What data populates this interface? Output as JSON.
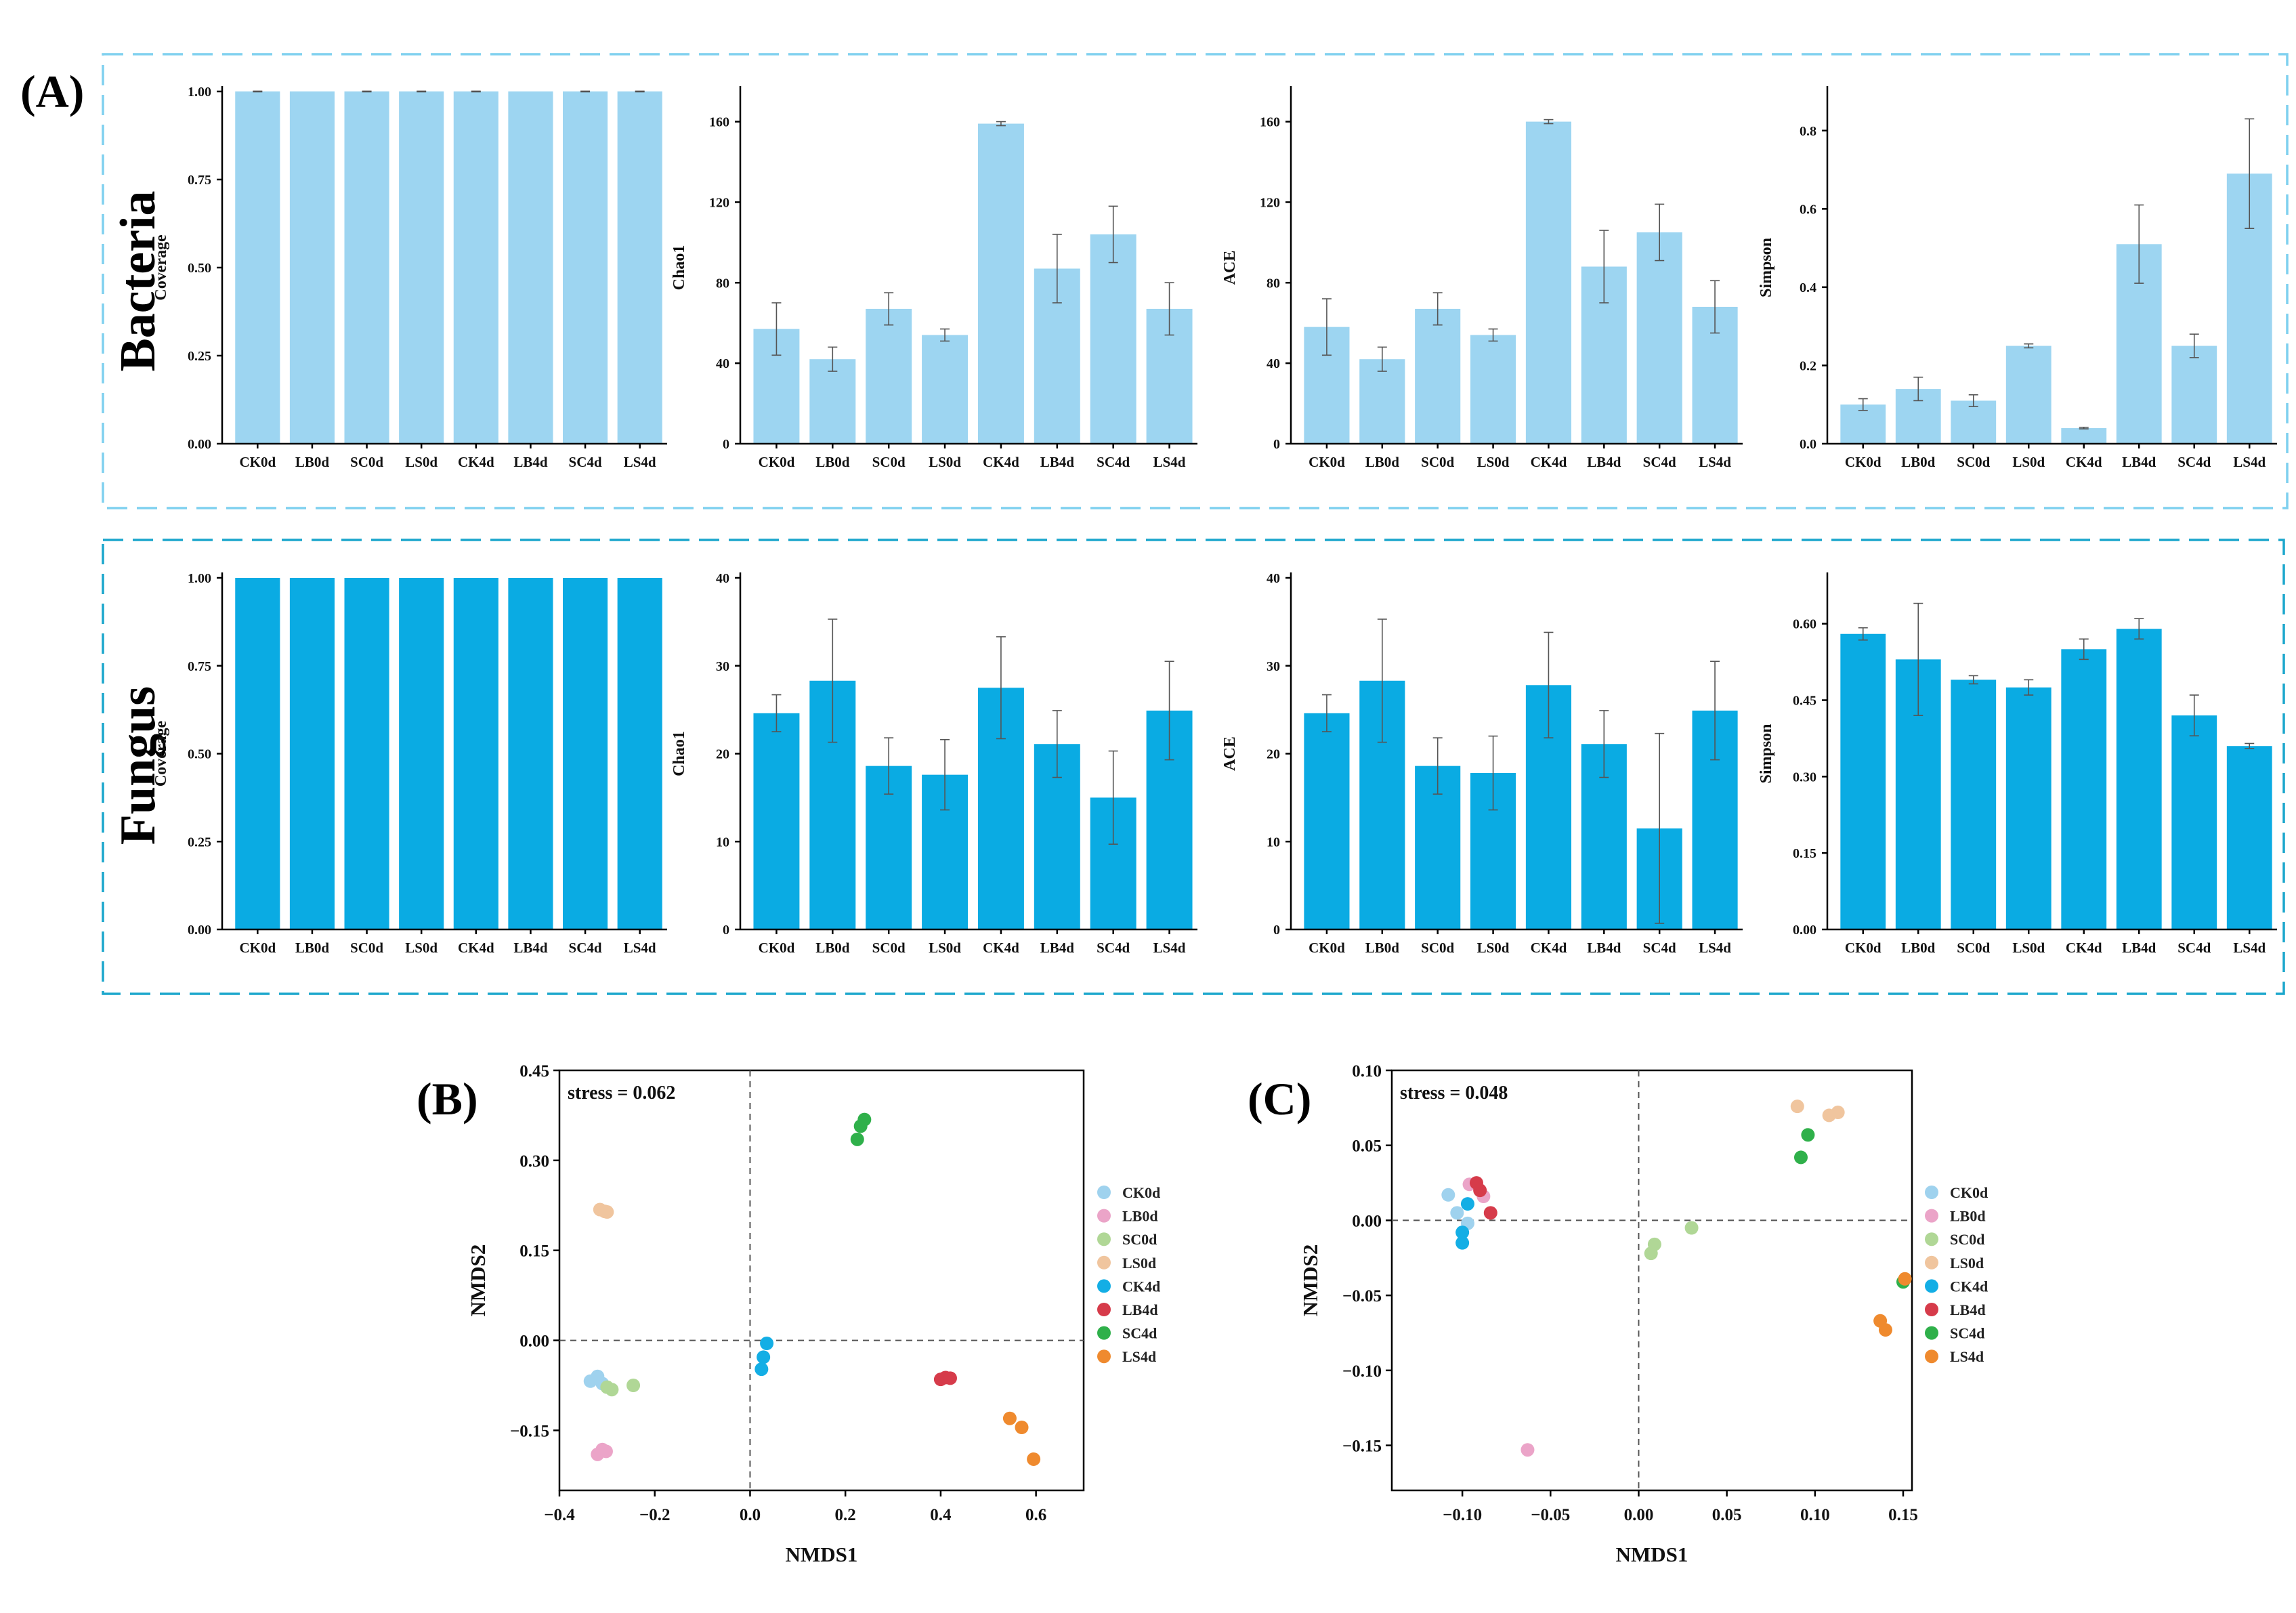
{
  "figure": {
    "label_A": "(A)",
    "label_B": "(B)",
    "label_C": "(C)",
    "row_bacteria": "Bacteria",
    "row_fungus": "Fungus"
  },
  "colors": {
    "bacteria_bar": "#9dd5f1",
    "fungus_bar": "#0aabe3",
    "bacteria_box": "#7fd0ef",
    "fungus_box": "#1aa6cc",
    "groups": {
      "CK0d": "#9fd2ee",
      "LB0d": "#eba4c8",
      "SC0d": "#b0d796",
      "LS0d": "#f0c59e",
      "CK4d": "#13aee5",
      "LB4d": "#d63b4a",
      "SC4d": "#2fb04a",
      "LS4d": "#ef8a2e"
    }
  },
  "chart_data": [
    {
      "id": "bac_coverage",
      "type": "bar",
      "row": "bacteria",
      "ylabel": "Coverage",
      "categories": [
        "CK0d",
        "LB0d",
        "SC0d",
        "LS0d",
        "CK4d",
        "LB4d",
        "SC4d",
        "LS4d"
      ],
      "values": [
        1.0,
        1.0,
        1.0,
        1.0,
        1.0,
        1.0,
        1.0,
        1.0
      ],
      "errors": [
        0.001,
        0,
        0.001,
        0.001,
        0.001,
        0,
        0.001,
        0.001
      ],
      "ylim": [
        0,
        1.0
      ],
      "yticks": [
        "0.00",
        "0.25",
        "0.50",
        "0.75",
        "1.00"
      ]
    },
    {
      "id": "bac_chao1",
      "type": "bar",
      "row": "bacteria",
      "ylabel": "Chao1",
      "categories": [
        "CK0d",
        "LB0d",
        "SC0d",
        "LS0d",
        "CK4d",
        "LB4d",
        "SC4d",
        "LS4d"
      ],
      "values": [
        57,
        42,
        67,
        54,
        159,
        87,
        104,
        67
      ],
      "errors": [
        13,
        6,
        8,
        3,
        1,
        17,
        14,
        13
      ],
      "ylim": [
        0,
        175
      ],
      "yticks": [
        "0",
        "40",
        "80",
        "120",
        "160"
      ]
    },
    {
      "id": "bac_ace",
      "type": "bar",
      "row": "bacteria",
      "ylabel": "ACE",
      "categories": [
        "CK0d",
        "LB0d",
        "SC0d",
        "LS0d",
        "CK4d",
        "LB4d",
        "SC4d",
        "LS4d"
      ],
      "values": [
        58,
        42,
        67,
        54,
        160,
        88,
        105,
        68
      ],
      "errors": [
        14,
        6,
        8,
        3,
        1,
        18,
        14,
        13
      ],
      "ylim": [
        0,
        175
      ],
      "yticks": [
        "0",
        "40",
        "80",
        "120",
        "160"
      ]
    },
    {
      "id": "bac_simpson",
      "type": "bar",
      "row": "bacteria",
      "ylabel": "Simpson",
      "categories": [
        "CK0d",
        "LB0d",
        "SC0d",
        "LS0d",
        "CK4d",
        "LB4d",
        "SC4d",
        "LS4d"
      ],
      "values": [
        0.1,
        0.14,
        0.11,
        0.25,
        0.04,
        0.51,
        0.25,
        0.69
      ],
      "errors": [
        0.015,
        0.03,
        0.015,
        0.005,
        0.002,
        0.1,
        0.03,
        0.14
      ],
      "ylim": [
        0,
        0.9
      ],
      "yticks": [
        "0.0",
        "0.2",
        "0.4",
        "0.6",
        "0.8"
      ]
    },
    {
      "id": "fun_coverage",
      "type": "bar",
      "row": "fungus",
      "ylabel": "Coverage",
      "categories": [
        "CK0d",
        "LB0d",
        "SC0d",
        "LS0d",
        "CK4d",
        "LB4d",
        "SC4d",
        "LS4d"
      ],
      "values": [
        1.0,
        1.0,
        1.0,
        1.0,
        1.0,
        1.0,
        1.0,
        1.0
      ],
      "errors": [
        0,
        0,
        0,
        0,
        0,
        0,
        0,
        0
      ],
      "ylim": [
        0,
        1.0
      ],
      "yticks": [
        "0.00",
        "0.25",
        "0.50",
        "0.75",
        "1.00"
      ]
    },
    {
      "id": "fun_chao1",
      "type": "bar",
      "row": "fungus",
      "ylabel": "Chao1",
      "categories": [
        "CK0d",
        "LB0d",
        "SC0d",
        "LS0d",
        "CK4d",
        "LB4d",
        "SC4d",
        "LS4d"
      ],
      "values": [
        24.6,
        28.3,
        18.6,
        17.6,
        27.5,
        21.1,
        15.0,
        24.9
      ],
      "errors": [
        2.1,
        7.0,
        3.2,
        4.0,
        5.8,
        3.8,
        5.3,
        5.6
      ],
      "ylim": [
        0,
        40
      ],
      "yticks": [
        "0",
        "10",
        "20",
        "30",
        "40"
      ]
    },
    {
      "id": "fun_ace",
      "type": "bar",
      "row": "fungus",
      "ylabel": "ACE",
      "categories": [
        "CK0d",
        "LB0d",
        "SC0d",
        "LS0d",
        "CK4d",
        "LB4d",
        "SC4d",
        "LS4d"
      ],
      "values": [
        24.6,
        28.3,
        18.6,
        17.8,
        27.8,
        21.1,
        11.5,
        24.9
      ],
      "errors": [
        2.1,
        7.0,
        3.2,
        4.2,
        6.0,
        3.8,
        10.8,
        5.6
      ],
      "ylim": [
        0,
        40
      ],
      "yticks": [
        "0",
        "10",
        "20",
        "30",
        "40"
      ]
    },
    {
      "id": "fun_simpson",
      "type": "bar",
      "row": "fungus",
      "ylabel": "Simpson",
      "categories": [
        "CK0d",
        "LB0d",
        "SC0d",
        "LS0d",
        "CK4d",
        "LB4d",
        "SC4d",
        "LS4d"
      ],
      "values": [
        0.58,
        0.53,
        0.49,
        0.475,
        0.55,
        0.59,
        0.42,
        0.36
      ],
      "errors": [
        0.012,
        0.11,
        0.008,
        0.015,
        0.02,
        0.02,
        0.04,
        0.005
      ],
      "ylim": [
        0,
        0.69
      ],
      "yticks": [
        "0.00",
        "0.15",
        "0.30",
        "0.45",
        "0.60"
      ]
    },
    {
      "id": "nmds_b",
      "type": "scatter",
      "panel": "B",
      "xlabel": "NMDS1",
      "ylabel": "NMDS2",
      "stress": "stress = 0.062",
      "xlim": [
        -0.4,
        0.7
      ],
      "ylim": [
        -0.25,
        0.45
      ],
      "xticks": [
        -0.4,
        -0.2,
        0.0,
        0.2,
        0.4,
        0.6
      ],
      "xticklabels": [
        "−0.4",
        "−0.2",
        "0.0",
        "0.2",
        "0.4",
        "0.6"
      ],
      "yticks": [
        -0.15,
        0.0,
        0.15,
        0.3,
        0.45
      ],
      "yticklabels": [
        "−0.15",
        "0.00",
        "0.15",
        "0.30",
        "0.45"
      ],
      "series": [
        {
          "name": "CK0d",
          "points": [
            [
              -0.335,
              -0.068
            ],
            [
              -0.32,
              -0.06
            ],
            [
              -0.31,
              -0.072
            ]
          ]
        },
        {
          "name": "LB0d",
          "points": [
            [
              -0.32,
              -0.19
            ],
            [
              -0.31,
              -0.182
            ],
            [
              -0.302,
              -0.185
            ]
          ]
        },
        {
          "name": "SC0d",
          "points": [
            [
              -0.3,
              -0.078
            ],
            [
              -0.29,
              -0.082
            ],
            [
              -0.245,
              -0.075
            ]
          ]
        },
        {
          "name": "LS0d",
          "points": [
            [
              -0.315,
              0.218
            ],
            [
              -0.305,
              0.215
            ],
            [
              -0.3,
              0.214
            ]
          ]
        },
        {
          "name": "CK4d",
          "points": [
            [
              0.035,
              -0.005
            ],
            [
              0.028,
              -0.028
            ],
            [
              0.024,
              -0.048
            ]
          ]
        },
        {
          "name": "LB4d",
          "points": [
            [
              0.4,
              -0.065
            ],
            [
              0.41,
              -0.062
            ],
            [
              0.42,
              -0.063
            ]
          ]
        },
        {
          "name": "SC4d",
          "points": [
            [
              0.225,
              0.335
            ],
            [
              0.232,
              0.357
            ],
            [
              0.24,
              0.368
            ]
          ]
        },
        {
          "name": "LS4d",
          "points": [
            [
              0.545,
              -0.13
            ],
            [
              0.57,
              -0.145
            ],
            [
              0.595,
              -0.198
            ]
          ]
        }
      ]
    },
    {
      "id": "nmds_c",
      "type": "scatter",
      "panel": "C",
      "xlabel": "NMDS1",
      "ylabel": "NMDS2",
      "stress": "stress = 0.048",
      "xlim": [
        -0.14,
        0.155
      ],
      "ylim": [
        -0.18,
        0.1
      ],
      "xticks": [
        -0.1,
        -0.05,
        0.0,
        0.05,
        0.1,
        0.15
      ],
      "xticklabels": [
        "−0.10",
        "−0.05",
        "0.00",
        "0.05",
        "0.10",
        "0.15"
      ],
      "yticks": [
        -0.15,
        -0.1,
        -0.05,
        0.0,
        0.05,
        0.1
      ],
      "yticklabels": [
        "−0.15",
        "−0.10",
        "−0.05",
        "0.00",
        "0.05",
        "0.10"
      ],
      "series": [
        {
          "name": "CK0d",
          "points": [
            [
              -0.108,
              0.017
            ],
            [
              -0.103,
              0.005
            ],
            [
              -0.097,
              -0.002
            ]
          ]
        },
        {
          "name": "LB0d",
          "points": [
            [
              -0.096,
              0.024
            ],
            [
              -0.088,
              0.016
            ],
            [
              -0.063,
              -0.153
            ]
          ]
        },
        {
          "name": "SC0d",
          "points": [
            [
              0.007,
              -0.022
            ],
            [
              0.009,
              -0.016
            ],
            [
              0.03,
              -0.005
            ]
          ]
        },
        {
          "name": "LS0d",
          "points": [
            [
              0.09,
              0.076
            ],
            [
              0.108,
              0.07
            ],
            [
              0.113,
              0.072
            ]
          ]
        },
        {
          "name": "CK4d",
          "points": [
            [
              -0.097,
              0.011
            ],
            [
              -0.1,
              -0.008
            ],
            [
              -0.1,
              -0.015
            ]
          ]
        },
        {
          "name": "LB4d",
          "points": [
            [
              -0.092,
              0.025
            ],
            [
              -0.09,
              0.02
            ],
            [
              -0.084,
              0.005
            ]
          ]
        },
        {
          "name": "SC4d",
          "points": [
            [
              0.092,
              0.042
            ],
            [
              0.096,
              0.057
            ],
            [
              0.15,
              -0.041
            ]
          ]
        },
        {
          "name": "LS4d",
          "points": [
            [
              0.137,
              -0.067
            ],
            [
              0.14,
              -0.073
            ],
            [
              0.151,
              -0.039
            ]
          ]
        }
      ]
    }
  ],
  "legend": [
    "CK0d",
    "LB0d",
    "SC0d",
    "LS0d",
    "CK4d",
    "LB4d",
    "SC4d",
    "LS4d"
  ]
}
